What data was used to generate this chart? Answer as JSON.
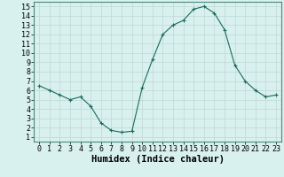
{
  "x": [
    0,
    1,
    2,
    3,
    4,
    5,
    6,
    7,
    8,
    9,
    10,
    11,
    12,
    13,
    14,
    15,
    16,
    17,
    18,
    19,
    20,
    21,
    22,
    23
  ],
  "y": [
    6.5,
    6.0,
    5.5,
    5.0,
    5.3,
    4.3,
    2.5,
    1.7,
    1.5,
    1.6,
    6.3,
    9.3,
    12.0,
    13.0,
    13.5,
    14.7,
    15.0,
    14.3,
    12.5,
    8.7,
    7.0,
    6.0,
    5.3,
    5.5
  ],
  "xlabel": "Humidex (Indice chaleur)",
  "xlim": [
    -0.5,
    23.5
  ],
  "ylim": [
    0.5,
    15.5
  ],
  "xticks": [
    0,
    1,
    2,
    3,
    4,
    5,
    6,
    7,
    8,
    9,
    10,
    11,
    12,
    13,
    14,
    15,
    16,
    17,
    18,
    19,
    20,
    21,
    22,
    23
  ],
  "yticks": [
    1,
    2,
    3,
    4,
    5,
    6,
    7,
    8,
    9,
    10,
    11,
    12,
    13,
    14,
    15
  ],
  "line_color": "#1a6b5a",
  "marker": "+",
  "bg_color": "#d8f0ee",
  "grid_color": "#c0d8d4",
  "tick_fontsize": 6.0,
  "xlabel_fontsize": 7.5
}
